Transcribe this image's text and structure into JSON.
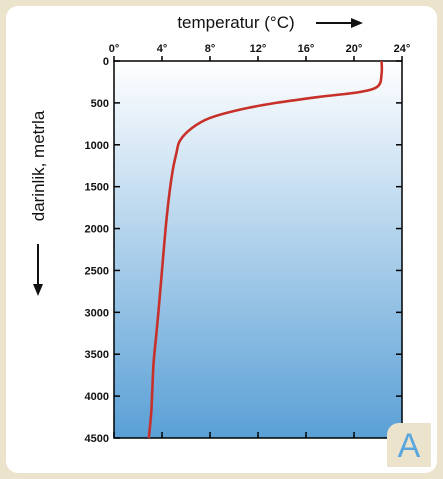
{
  "chart_data": {
    "type": "line",
    "xlabel": "temperatur (°C)",
    "ylabel": "darinlik, metrla",
    "x_ticks": [
      0,
      4,
      8,
      12,
      16,
      20,
      24
    ],
    "x_tick_labels": [
      "0°",
      "4°",
      "8°",
      "12°",
      "16°",
      "20°",
      "24°"
    ],
    "y_ticks": [
      0,
      500,
      1000,
      1500,
      2000,
      2500,
      3000,
      3500,
      4000,
      4500
    ],
    "y_tick_labels": [
      "0",
      "500",
      "1000",
      "1500",
      "2000",
      "2500",
      "3000",
      "3500",
      "4000",
      "4500"
    ],
    "xlim": [
      0,
      24
    ],
    "ylim": [
      0,
      4500
    ],
    "y_inverted": true,
    "x_axis_position": "top",
    "grid": false,
    "series": [
      {
        "x": [
          22.3,
          22.3,
          22.0,
          20.5,
          17.0,
          13.5,
          10.5,
          8.0,
          6.5,
          5.5,
          5.2,
          4.9,
          4.6,
          4.3,
          4.0,
          3.7,
          3.5,
          3.3,
          3.2,
          3.1,
          2.9
        ],
        "y": [
          0,
          150,
          300,
          370,
          430,
          500,
          580,
          680,
          800,
          950,
          1100,
          1300,
          1600,
          2000,
          2500,
          3000,
          3300,
          3600,
          3900,
          4200,
          4500
        ],
        "color": "#c8302a"
      }
    ],
    "background_gradient": [
      "#ffffff",
      "#5aa0d6"
    ],
    "panel_label": "A"
  }
}
